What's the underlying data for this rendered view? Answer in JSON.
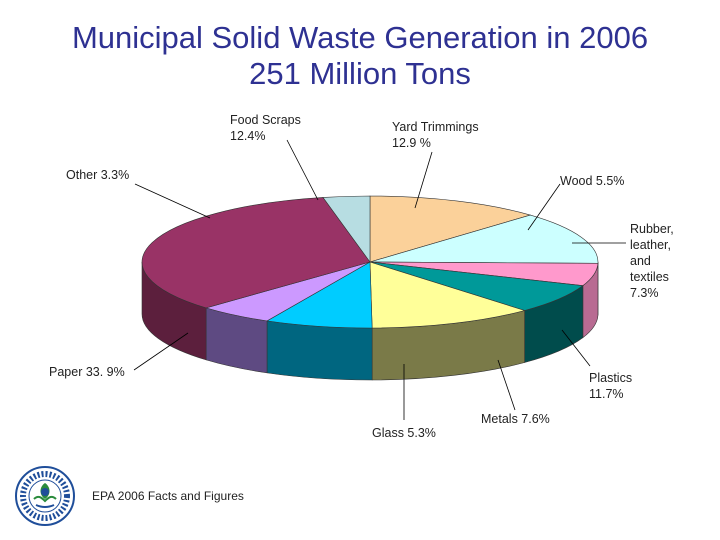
{
  "chart_data": {
    "type": "pie",
    "title": "Municipal Solid Waste Generation in 2006",
    "subtitle": "251 Million Tons",
    "unit": "%",
    "slices": [
      {
        "label": "Food Scraps",
        "display": "12.4%",
        "value": 12.4,
        "color": "#fbd19a",
        "side": "#bf9a66"
      },
      {
        "label": "Yard Trimmings",
        "display": "12.9 %",
        "value": 12.9,
        "color": "#ccffff",
        "side": "#8fb8b8"
      },
      {
        "label": "Wood",
        "display": "5.5%",
        "value": 5.5,
        "color": "#ff99cc",
        "side": "#b86b92"
      },
      {
        "label": "Rubber, leather, and textiles",
        "display": "7.3%",
        "value": 7.3,
        "color": "#009999",
        "side": "#004c4c"
      },
      {
        "label": "Plastics",
        "display": "11.7%",
        "value": 11.7,
        "color": "#ffff99",
        "side": "#7a7a48"
      },
      {
        "label": "Metals",
        "display": "7.6%",
        "value": 7.6,
        "color": "#00ccff",
        "side": "#006680"
      },
      {
        "label": "Glass",
        "display": "5.3%",
        "value": 5.3,
        "color": "#cc99ff",
        "side": "#5e4a82"
      },
      {
        "label": "Paper",
        "display": "33. 9%",
        "value": 33.9,
        "color": "#993366",
        "side": "#5c1f3d"
      },
      {
        "label": "Other",
        "display": "3.3%",
        "value": 3.3,
        "color": "#b7dde2",
        "side": "#7a9da2"
      }
    ]
  },
  "labels": {
    "food": [
      "Food Scraps",
      "12.4%"
    ],
    "yard": [
      "Yard Trimmings",
      "12.9 %"
    ],
    "wood": "Wood  5.5%",
    "rubber": [
      "Rubber,",
      "leather,",
      "and",
      "textiles",
      "7.3%"
    ],
    "plastics": [
      "Plastics",
      "11.7%"
    ],
    "metals": "Metals 7.6%",
    "glass": "Glass 5.3%",
    "paper": "Paper 33. 9%",
    "other": "Other 3.3%"
  },
  "footer": {
    "text": "EPA 2006 Facts and Figures",
    "logo_icon": "epa-seal-icon"
  }
}
